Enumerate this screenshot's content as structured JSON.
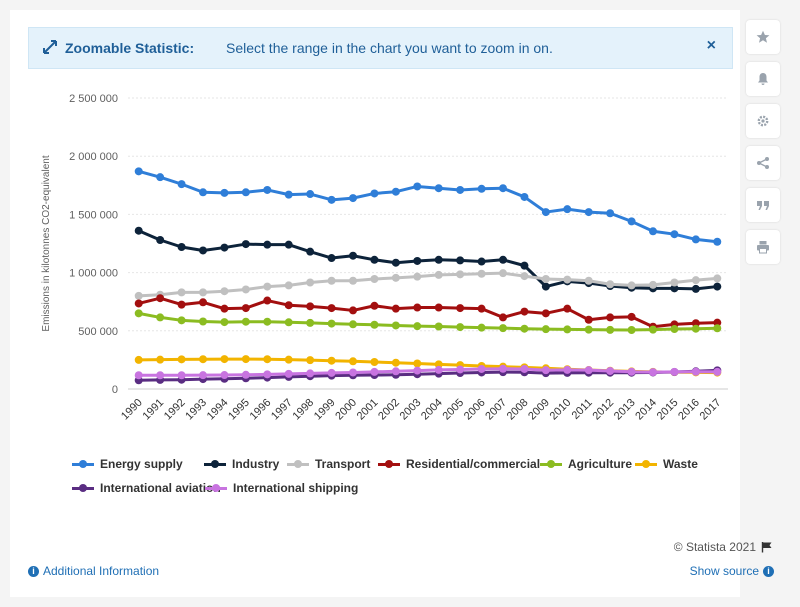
{
  "banner": {
    "title": "Zoomable Statistic:",
    "text": "Select the range in the chart you want to zoom in on.",
    "close_label": "×"
  },
  "sidebar_icons": [
    "star-icon",
    "bell-icon",
    "gear-icon",
    "share-icon",
    "quote-icon",
    "print-icon"
  ],
  "footer": {
    "credit": "© Statista 2021",
    "additional_info": "Additional Information",
    "show_source": "Show source"
  },
  "chart_data": {
    "type": "line",
    "title": "",
    "xlabel": "",
    "ylabel": "Emissions in kilotonnes CO2-equivalent",
    "ylim": [
      0,
      2500000
    ],
    "yticks": [
      "0",
      "500 000",
      "1 000 000",
      "1 500 000",
      "2 000 000",
      "2 500 000"
    ],
    "ytick_values": [
      0,
      500000,
      1000000,
      1500000,
      2000000,
      2500000
    ],
    "grid": true,
    "legend": "bottom",
    "categories": [
      "1990",
      "1991",
      "1992",
      "1993",
      "1994",
      "1995",
      "1996",
      "1997",
      "1998",
      "1999",
      "2000",
      "2001",
      "2002",
      "2003",
      "2004",
      "2005",
      "2006",
      "2007",
      "2008",
      "2009",
      "2010",
      "2011",
      "2012",
      "2013",
      "2014",
      "2015",
      "2016",
      "2017"
    ],
    "series": [
      {
        "name": "Energy supply",
        "color": "#2f7ed8",
        "values": [
          1870000,
          1820000,
          1760000,
          1690000,
          1685000,
          1690000,
          1710000,
          1670000,
          1675000,
          1625000,
          1640000,
          1680000,
          1695000,
          1740000,
          1725000,
          1710000,
          1720000,
          1725000,
          1650000,
          1520000,
          1545000,
          1520000,
          1510000,
          1440000,
          1355000,
          1330000,
          1285000,
          1265000
        ]
      },
      {
        "name": "Industry",
        "color": "#0d233a",
        "values": [
          1360000,
          1280000,
          1220000,
          1190000,
          1215000,
          1245000,
          1240000,
          1240000,
          1180000,
          1125000,
          1145000,
          1110000,
          1085000,
          1100000,
          1110000,
          1105000,
          1095000,
          1110000,
          1060000,
          880000,
          925000,
          910000,
          885000,
          870000,
          865000,
          865000,
          860000,
          880000
        ]
      },
      {
        "name": "Transport",
        "color": "#c0c0c0",
        "values": [
          800000,
          810000,
          830000,
          830000,
          840000,
          855000,
          880000,
          890000,
          915000,
          930000,
          930000,
          945000,
          955000,
          965000,
          980000,
          985000,
          990000,
          995000,
          970000,
          945000,
          940000,
          930000,
          900000,
          890000,
          895000,
          915000,
          935000,
          950000
        ]
      },
      {
        "name": "Residential/commercial",
        "color": "#a30f0f",
        "values": [
          735000,
          780000,
          725000,
          745000,
          690000,
          695000,
          760000,
          720000,
          710000,
          695000,
          675000,
          715000,
          690000,
          700000,
          700000,
          695000,
          690000,
          615000,
          665000,
          650000,
          690000,
          595000,
          615000,
          620000,
          535000,
          555000,
          565000,
          570000
        ]
      },
      {
        "name": "Agriculture",
        "color": "#8bbc21",
        "values": [
          650000,
          615000,
          590000,
          580000,
          575000,
          578000,
          578000,
          573000,
          568000,
          562000,
          556000,
          552000,
          546000,
          540000,
          537000,
          532000,
          527000,
          523000,
          518000,
          514000,
          512000,
          510000,
          508000,
          507000,
          510000,
          515000,
          518000,
          522000
        ]
      },
      {
        "name": "Waste",
        "color": "#f2b400",
        "values": [
          250000,
          252000,
          255000,
          256000,
          257000,
          257000,
          256000,
          252000,
          248000,
          243000,
          238000,
          232000,
          226000,
          219000,
          212000,
          205000,
          198000,
          192000,
          186000,
          178000,
          170000,
          163000,
          157000,
          151000,
          147000,
          145000,
          143000,
          141000
        ]
      },
      {
        "name": "International aviation",
        "color": "#5a2d82",
        "values": [
          75000,
          78000,
          80000,
          85000,
          88000,
          92000,
          98000,
          104000,
          110000,
          115000,
          118000,
          120000,
          122000,
          127000,
          132000,
          137000,
          142000,
          145000,
          144000,
          136000,
          138000,
          140000,
          140000,
          140000,
          142000,
          146000,
          152000,
          160000
        ]
      },
      {
        "name": "International shipping",
        "color": "#c874e0",
        "values": [
          118000,
          118000,
          118000,
          119000,
          120000,
          122000,
          126000,
          130000,
          134000,
          138000,
          142000,
          147000,
          152000,
          158000,
          164000,
          168000,
          172000,
          174000,
          172000,
          162000,
          164000,
          162000,
          155000,
          148000,
          145000,
          147000,
          148000,
          147000
        ]
      }
    ]
  }
}
